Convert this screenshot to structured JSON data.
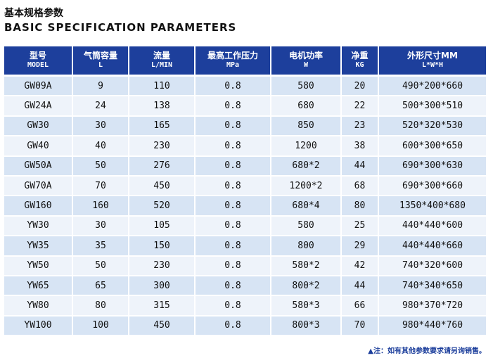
{
  "title": "基本规格参数",
  "subtitle": "BASIC SPECIFICATION PARAMETERS",
  "table": {
    "header": [
      [
        "型号",
        "MODEL"
      ],
      [
        "气筒容量",
        "L"
      ],
      [
        "流量",
        "L/MIN"
      ],
      [
        "最高工作压力",
        "MPa"
      ],
      [
        "电机功率",
        "W"
      ],
      [
        "净重",
        "KG"
      ],
      [
        "外形尺寸MM",
        "L*W*H"
      ]
    ],
    "rows": [
      [
        "GW09A",
        "9",
        "110",
        "0.8",
        "580",
        "20",
        "490*200*660"
      ],
      [
        "GW24A",
        "24",
        "138",
        "0.8",
        "680",
        "22",
        "500*300*510"
      ],
      [
        "GW30",
        "30",
        "165",
        "0.8",
        "850",
        "23",
        "520*320*530"
      ],
      [
        "GW40",
        "40",
        "230",
        "0.8",
        "1200",
        "38",
        "600*300*650"
      ],
      [
        "GW50A",
        "50",
        "276",
        "0.8",
        "680*2",
        "44",
        "690*300*630"
      ],
      [
        "GW70A",
        "70",
        "450",
        "0.8",
        "1200*2",
        "68",
        "690*300*660"
      ],
      [
        "GW160",
        "160",
        "520",
        "0.8",
        "680*4",
        "80",
        "1350*400*680"
      ],
      [
        "YW30",
        "30",
        "105",
        "0.8",
        "580",
        "25",
        "440*440*600"
      ],
      [
        "YW35",
        "35",
        "150",
        "0.8",
        "800",
        "29",
        "440*440*660"
      ],
      [
        "YW50",
        "50",
        "230",
        "0.8",
        "580*2",
        "42",
        "740*320*600"
      ],
      [
        "YW65",
        "65",
        "300",
        "0.8",
        "800*2",
        "44",
        "740*340*650"
      ],
      [
        "YW80",
        "80",
        "315",
        "0.8",
        "580*3",
        "66",
        "980*370*720"
      ],
      [
        "YW100",
        "100",
        "450",
        "0.8",
        "800*3",
        "70",
        "980*440*760"
      ]
    ]
  },
  "note": "▲注：如有其他参数要求请另询销售。"
}
